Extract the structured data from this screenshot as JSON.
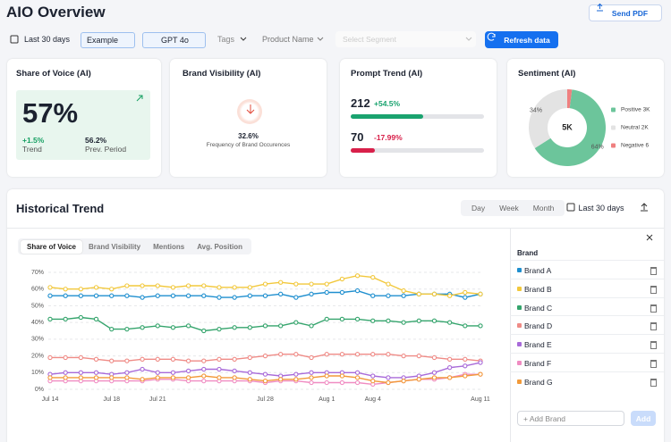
{
  "header": {
    "title": "AIO Overview",
    "send_pdf": "Send PDF"
  },
  "filters": {
    "date": "Last 30 days",
    "chips": [
      "Example",
      "GPT 4o"
    ],
    "tags": "Tags",
    "product": "Product Name",
    "segment": "Select Segment",
    "refresh": "Refresh data"
  },
  "cards": {
    "share_of_voice": {
      "title": "Share of Voice (AI)",
      "value": "57%",
      "trend": "+1.5%",
      "trend_label": "Trend",
      "prev": "56.2%",
      "prev_label": "Prev. Period"
    },
    "brand_visibility": {
      "title": "Brand Visibility (AI)",
      "value": "32.6%",
      "caption": "Frequency of Brand Occurences"
    },
    "prompt_trend": {
      "title": "Prompt Trend (AI)",
      "rows": [
        {
          "count": "212",
          "change": 54.5,
          "change_label": "+54.5%",
          "color": "#1aa36f"
        },
        {
          "count": "70",
          "change": -17.99,
          "change_label": "-17.99%",
          "color": "#d8204a"
        }
      ]
    }
  },
  "historical": {
    "title": "Historical Trend",
    "periods": [
      "Day",
      "Week",
      "Month"
    ],
    "date": "Last 30 days",
    "tabs": [
      "Share of Voice",
      "Brand Visibility",
      "Mentions",
      "Avg. Position"
    ]
  },
  "brand_panel": {
    "title": "Brand",
    "add_brand": "+ Add Brand",
    "add": "Add"
  },
  "chart_data": [
    {
      "type": "line",
      "categories": [
        "Jul 14",
        null,
        null,
        null,
        "Jul 18",
        null,
        null,
        "Jul 21",
        null,
        null,
        null,
        null,
        null,
        null,
        "Jul 28",
        null,
        null,
        null,
        "Aug 1",
        null,
        null,
        "Aug 4",
        null,
        null,
        null,
        null,
        null,
        null,
        "Aug 11"
      ],
      "ylim": [
        0,
        70
      ],
      "yticks": [
        {
          "value": 0,
          "label": "0%"
        },
        {
          "value": 10,
          "label": "10%"
        },
        {
          "value": 20,
          "label": "20%"
        },
        {
          "value": 30,
          "label": "30%"
        },
        {
          "value": 40,
          "label": "40%"
        },
        {
          "value": 50,
          "label": "50%"
        },
        {
          "value": 60,
          "label": "60%"
        },
        {
          "value": 70,
          "label": "70%"
        }
      ],
      "grid": true,
      "series": [
        {
          "name": "Brand A",
          "color": "#1f8fcf",
          "values": [
            56,
            56,
            56,
            56,
            56,
            56,
            55,
            56,
            56,
            56,
            56,
            55,
            55,
            56,
            56,
            57,
            55,
            57,
            58,
            58,
            59,
            56,
            56,
            56,
            57,
            57,
            57,
            55,
            57
          ]
        },
        {
          "name": "Brand B",
          "color": "#f2c83c",
          "values": [
            61,
            60,
            60,
            61,
            60,
            62,
            62,
            62,
            61,
            62,
            62,
            61,
            61,
            61,
            63,
            64,
            63,
            63,
            63,
            66,
            68,
            67,
            63,
            59,
            57,
            57,
            56,
            58,
            57
          ]
        },
        {
          "name": "Brand C",
          "color": "#34a46c",
          "values": [
            42,
            42,
            43,
            42,
            36,
            36,
            37,
            38,
            37,
            38,
            35,
            36,
            37,
            37,
            38,
            38,
            40,
            38,
            42,
            42,
            42,
            41,
            41,
            40,
            41,
            41,
            40,
            38,
            38
          ]
        },
        {
          "name": "Brand D",
          "color": "#ef8b86",
          "values": [
            19,
            19,
            19,
            18,
            17,
            17,
            18,
            18,
            18,
            17,
            17,
            18,
            18,
            19,
            20,
            21,
            21,
            19,
            21,
            21,
            21,
            21,
            21,
            20,
            20,
            19,
            18,
            18,
            17
          ]
        },
        {
          "name": "Brand E",
          "color": "#a86ad9",
          "values": [
            9,
            10,
            10,
            10,
            9,
            10,
            12,
            10,
            10,
            11,
            12,
            12,
            11,
            10,
            9,
            8,
            9,
            10,
            10,
            10,
            10,
            8,
            7,
            7,
            8,
            10,
            13,
            14,
            16
          ]
        },
        {
          "name": "Brand F",
          "color": "#f08cc2",
          "values": [
            5,
            5,
            5,
            5,
            5,
            5,
            5,
            6,
            6,
            5,
            5,
            5,
            5,
            5,
            4,
            5,
            5,
            4,
            4,
            4,
            4,
            3,
            4,
            5,
            6,
            6,
            7,
            9,
            9
          ]
        },
        {
          "name": "Brand G",
          "color": "#f29a3a",
          "values": [
            7,
            7,
            7,
            7,
            7,
            7,
            6,
            7,
            7,
            7,
            8,
            7,
            7,
            6,
            5,
            6,
            6,
            7,
            8,
            8,
            7,
            5,
            4,
            5,
            6,
            7,
            7,
            8,
            9
          ]
        }
      ]
    },
    {
      "type": "pie",
      "title": "Sentiment (AI)",
      "center_label": "5K",
      "categories": [
        "Positive 3K",
        "Neutral 2K",
        "Negative 6"
      ],
      "values": [
        64,
        34,
        2
      ],
      "value_labels": [
        "64%",
        "34%",
        null
      ],
      "colors": [
        "#6cc59b",
        "#e3e3e3",
        "#ef8080"
      ]
    }
  ]
}
